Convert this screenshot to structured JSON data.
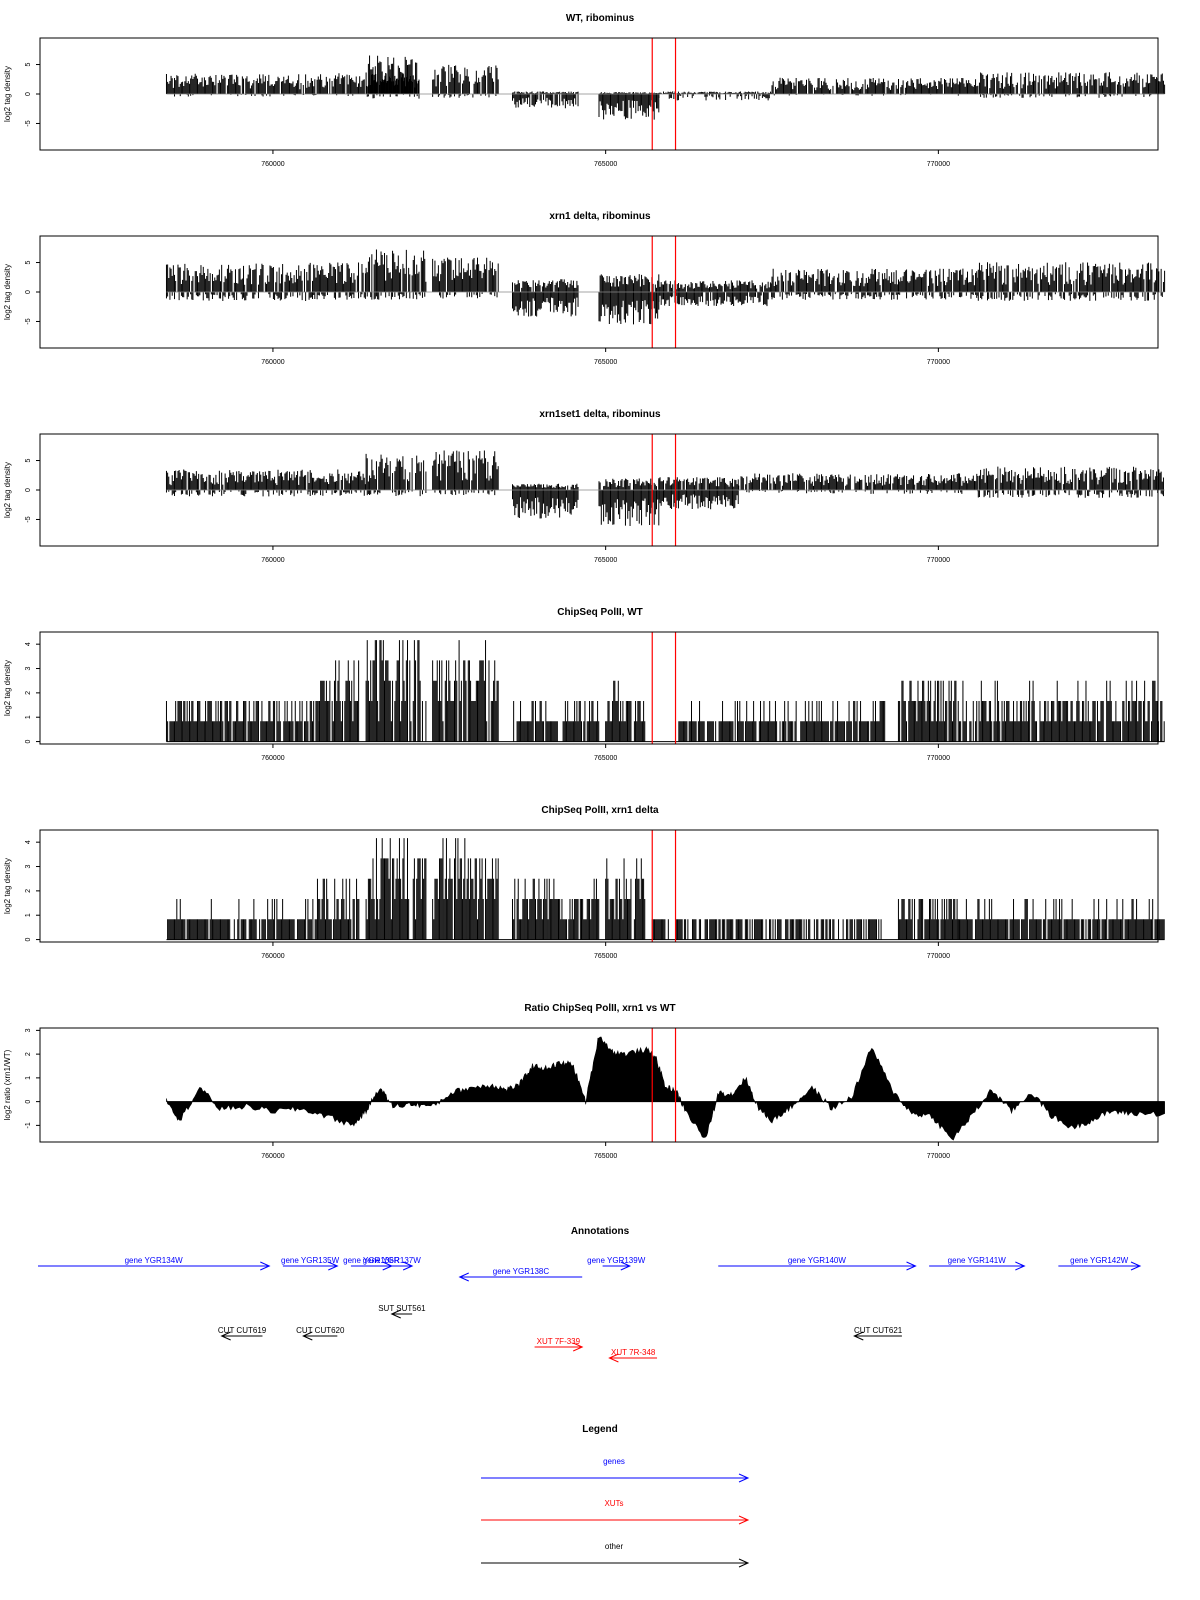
{
  "chart_data": [
    {
      "type": "bar",
      "title": "WT, ribominus",
      "ylabel": "log2 tag density",
      "xlabel": "",
      "xlim": [
        756800,
        773000
      ],
      "ylim": [
        -9.5,
        9.5
      ],
      "yticks": [
        "-5",
        "0",
        "5"
      ],
      "xticks": [
        "760000",
        "765000",
        "770000"
      ],
      "grid": false,
      "marker_positions": [
        765700,
        766050
      ],
      "marker_color": "#ff0000",
      "regions": [
        {
          "from": 758400,
          "to": 762200,
          "pos_level": 3.2,
          "neg_level": 0.4
        },
        {
          "from": 761400,
          "to": 762200,
          "pos_level": 6.0,
          "neg_level": 0.8
        },
        {
          "from": 762400,
          "to": 763400,
          "pos_level": 4.5,
          "neg_level": 0.6
        },
        {
          "from": 763600,
          "to": 764600,
          "pos_level": 0.4,
          "neg_level": 2.2
        },
        {
          "from": 764900,
          "to": 765800,
          "pos_level": 0.3,
          "neg_level": 4.0
        },
        {
          "from": 765800,
          "to": 767500,
          "pos_level": 0.4,
          "neg_level": 1.0
        },
        {
          "from": 767500,
          "to": 770600,
          "pos_level": 2.5,
          "neg_level": 0.3
        },
        {
          "from": 770600,
          "to": 773400,
          "pos_level": 3.4,
          "neg_level": 0.6
        }
      ]
    },
    {
      "type": "bar",
      "title": "xrn1 delta, ribominus",
      "ylabel": "log2 tag density",
      "xlabel": "",
      "xlim": [
        756800,
        773000
      ],
      "ylim": [
        -9.5,
        9.5
      ],
      "yticks": [
        "-5",
        "0",
        "5"
      ],
      "xticks": [
        "760000",
        "765000",
        "770000"
      ],
      "grid": false,
      "marker_positions": [
        765700,
        766050
      ],
      "marker_color": "#ff0000",
      "regions": [
        {
          "from": 758400,
          "to": 761400,
          "pos_level": 4.6,
          "neg_level": 1.4
        },
        {
          "from": 761400,
          "to": 762300,
          "pos_level": 6.6,
          "neg_level": 1.2
        },
        {
          "from": 762400,
          "to": 763400,
          "pos_level": 5.5,
          "neg_level": 1.0
        },
        {
          "from": 763600,
          "to": 764600,
          "pos_level": 2.0,
          "neg_level": 3.8
        },
        {
          "from": 764900,
          "to": 765800,
          "pos_level": 2.8,
          "neg_level": 5.0
        },
        {
          "from": 765800,
          "to": 767500,
          "pos_level": 1.8,
          "neg_level": 2.2
        },
        {
          "from": 767500,
          "to": 770600,
          "pos_level": 3.6,
          "neg_level": 1.2
        },
        {
          "from": 770600,
          "to": 773400,
          "pos_level": 4.6,
          "neg_level": 1.4
        }
      ]
    },
    {
      "type": "bar",
      "title": "xrn1set1 delta, ribominus",
      "ylabel": "log2 tag density",
      "xlabel": "",
      "xlim": [
        756800,
        773000
      ],
      "ylim": [
        -9.5,
        9.5
      ],
      "yticks": [
        "-5",
        "0",
        "5"
      ],
      "xticks": [
        "760000",
        "765000",
        "770000"
      ],
      "grid": false,
      "marker_positions": [
        765700,
        766050
      ],
      "marker_color": "#ff0000",
      "regions": [
        {
          "from": 758400,
          "to": 761400,
          "pos_level": 3.2,
          "neg_level": 1.0
        },
        {
          "from": 761400,
          "to": 762300,
          "pos_level": 5.6,
          "neg_level": 1.0
        },
        {
          "from": 762400,
          "to": 763400,
          "pos_level": 6.2,
          "neg_level": 0.8
        },
        {
          "from": 763600,
          "to": 764600,
          "pos_level": 1.0,
          "neg_level": 4.5
        },
        {
          "from": 764900,
          "to": 765800,
          "pos_level": 1.8,
          "neg_level": 5.6
        },
        {
          "from": 765800,
          "to": 767000,
          "pos_level": 2.0,
          "neg_level": 3.0
        },
        {
          "from": 767000,
          "to": 770600,
          "pos_level": 2.6,
          "neg_level": 0.6
        },
        {
          "from": 770600,
          "to": 773400,
          "pos_level": 3.6,
          "neg_level": 1.2
        }
      ]
    },
    {
      "type": "bar",
      "title": "ChipSeq PolII, WT",
      "ylabel": "log2 tag density",
      "xlabel": "",
      "xlim": [
        756800,
        773000
      ],
      "ylim": [
        -0.1,
        4.5
      ],
      "yticks": [
        "0",
        "1",
        "2",
        "3",
        "4"
      ],
      "xticks": [
        "760000",
        "765000",
        "770000"
      ],
      "grid": false,
      "marker_positions": [
        765700,
        766050
      ],
      "marker_color": "#ff0000",
      "regions": [
        {
          "from": 758400,
          "to": 760700,
          "pos_level": 1.7,
          "neg_level": 0
        },
        {
          "from": 760700,
          "to": 761300,
          "pos_level": 2.9,
          "neg_level": 0
        },
        {
          "from": 761400,
          "to": 762300,
          "pos_level": 3.9,
          "neg_level": 0
        },
        {
          "from": 762400,
          "to": 763400,
          "pos_level": 3.5,
          "neg_level": 0
        },
        {
          "from": 763600,
          "to": 764900,
          "pos_level": 1.3,
          "neg_level": 0
        },
        {
          "from": 765000,
          "to": 765600,
          "pos_level": 2.1,
          "neg_level": 0
        },
        {
          "from": 766100,
          "to": 769200,
          "pos_level": 1.3,
          "neg_level": 0
        },
        {
          "from": 769400,
          "to": 770300,
          "pos_level": 2.5,
          "neg_level": 0
        },
        {
          "from": 770300,
          "to": 773400,
          "pos_level": 2.0,
          "neg_level": 0
        }
      ]
    },
    {
      "type": "bar",
      "title": "ChipSeq PolII, xrn1 delta",
      "ylabel": "log2 tag density",
      "xlabel": "",
      "xlim": [
        756800,
        773000
      ],
      "ylim": [
        -0.1,
        4.5
      ],
      "yticks": [
        "0",
        "1",
        "2",
        "3",
        "4"
      ],
      "xticks": [
        "760000",
        "765000",
        "770000"
      ],
      "grid": false,
      "marker_positions": [
        765700,
        766050
      ],
      "marker_color": "#ff0000",
      "regions": [
        {
          "from": 758400,
          "to": 760600,
          "pos_level": 1.2,
          "neg_level": 0
        },
        {
          "from": 760600,
          "to": 761300,
          "pos_level": 2.2,
          "neg_level": 0
        },
        {
          "from": 761400,
          "to": 762300,
          "pos_level": 3.6,
          "neg_level": 0
        },
        {
          "from": 762400,
          "to": 763400,
          "pos_level": 3.7,
          "neg_level": 0
        },
        {
          "from": 763600,
          "to": 764900,
          "pos_level": 2.3,
          "neg_level": 0
        },
        {
          "from": 765000,
          "to": 765600,
          "pos_level": 2.9,
          "neg_level": 0
        },
        {
          "from": 765700,
          "to": 769200,
          "pos_level": 0.7,
          "neg_level": 0
        },
        {
          "from": 769400,
          "to": 770300,
          "pos_level": 1.8,
          "neg_level": 0
        },
        {
          "from": 770300,
          "to": 773400,
          "pos_level": 1.3,
          "neg_level": 0
        }
      ]
    },
    {
      "type": "area",
      "title": "Ratio ChipSeq PolII, xrn1 vs WT",
      "ylabel": "log2 ratio (xrn1/WT)",
      "xlabel": "",
      "xlim": [
        756800,
        773000
      ],
      "ylim": [
        -1.7,
        3.1
      ],
      "yticks": [
        "-1",
        "0",
        "1",
        "2",
        "3"
      ],
      "xticks": [
        "760000",
        "765000",
        "770000"
      ],
      "grid": false,
      "marker_positions": [
        765700,
        766050
      ],
      "marker_color": "#ff0000",
      "x": [
        758400,
        758600,
        758900,
        759200,
        759600,
        760000,
        760400,
        760800,
        761200,
        761400,
        761600,
        761800,
        762100,
        762400,
        762700,
        763000,
        763300,
        763500,
        763700,
        763900,
        764100,
        764300,
        764500,
        764700,
        764900,
        765100,
        765300,
        765600,
        765750,
        765900,
        766050,
        766200,
        766500,
        766700,
        766900,
        767100,
        767300,
        767500,
        767800,
        768100,
        768400,
        768700,
        769000,
        769300,
        769600,
        769900,
        770200,
        770500,
        770800,
        771100,
        771400,
        771700,
        772000,
        772300,
        772600,
        772900,
        773400
      ],
      "y": [
        0.1,
        -0.8,
        0.6,
        -0.3,
        -0.2,
        -0.4,
        -0.3,
        -0.6,
        -1.0,
        -0.4,
        0.6,
        -0.2,
        -0.1,
        -0.2,
        0.4,
        0.6,
        0.7,
        0.5,
        0.7,
        1.5,
        1.4,
        1.6,
        1.6,
        0.0,
        2.8,
        2.1,
        2.0,
        2.2,
        1.9,
        0.6,
        0.5,
        -0.4,
        -1.6,
        0.4,
        0.3,
        1.0,
        -0.3,
        -0.8,
        -0.2,
        0.6,
        -0.3,
        0.2,
        2.3,
        0.5,
        -0.5,
        -0.6,
        -1.6,
        -0.6,
        0.5,
        -0.4,
        0.4,
        -0.6,
        -1.1,
        -0.8,
        -0.4,
        -0.5,
        -0.5
      ]
    }
  ],
  "annotations": {
    "title": "Annotations",
    "xlim": [
      756800,
      773000
    ],
    "colors": {
      "gene": "#0000ff",
      "xut": "#ff0000",
      "other": "#000000"
    },
    "items": [
      {
        "label": "gene YGR134W",
        "kind": "gene",
        "start": 756800,
        "end": 760200,
        "strand": "+",
        "row": 0
      },
      {
        "label": "gene YGR135W",
        "kind": "gene",
        "start": 760400,
        "end": 761200,
        "strand": "+",
        "row": 0
      },
      {
        "label": "gene YGR136R",
        "kind": "gene",
        "start": 761400,
        "end": 762000,
        "strand": "+",
        "row": 0
      },
      {
        "label": "gene YGR137W",
        "kind": "gene",
        "start": 761700,
        "end": 762300,
        "strand": "+",
        "row": 0
      },
      {
        "label": "gene YGR138C",
        "kind": "gene",
        "start": 763000,
        "end": 764800,
        "strand": "-",
        "row": 1
      },
      {
        "label": "gene YGR139W",
        "kind": "gene",
        "start": 765100,
        "end": 765500,
        "strand": "+",
        "row": 0
      },
      {
        "label": "gene YGR140W",
        "kind": "gene",
        "start": 766800,
        "end": 769700,
        "strand": "+",
        "row": 0
      },
      {
        "label": "gene YGR141W",
        "kind": "gene",
        "start": 769900,
        "end": 771300,
        "strand": "+",
        "row": 0
      },
      {
        "label": "gene YGR142W",
        "kind": "gene",
        "start": 771800,
        "end": 773000,
        "strand": "+",
        "row": 0
      },
      {
        "label": "SUT SUT561",
        "kind": "other",
        "start": 762000,
        "end": 762300,
        "strand": "-",
        "row": 3
      },
      {
        "label": "CUT CUT619",
        "kind": "other",
        "start": 759500,
        "end": 760100,
        "strand": "-",
        "row": 4
      },
      {
        "label": "CUT CUT620",
        "kind": "other",
        "start": 760700,
        "end": 761200,
        "strand": "-",
        "row": 4
      },
      {
        "label": "CUT CUT621",
        "kind": "other",
        "start": 768800,
        "end": 769500,
        "strand": "-",
        "row": 4
      },
      {
        "label": "XUT 7F-339",
        "kind": "xut",
        "start": 764100,
        "end": 764800,
        "strand": "+",
        "row": 5
      },
      {
        "label": "XUT 7R-348",
        "kind": "xut",
        "start": 765200,
        "end": 765900,
        "strand": "-",
        "row": 6
      }
    ]
  },
  "legend": {
    "title": "Legend",
    "items": [
      {
        "label": "genes",
        "color": "#0000ff"
      },
      {
        "label": "XUTs",
        "color": "#ff0000"
      },
      {
        "label": "other",
        "color": "#000000"
      }
    ]
  }
}
